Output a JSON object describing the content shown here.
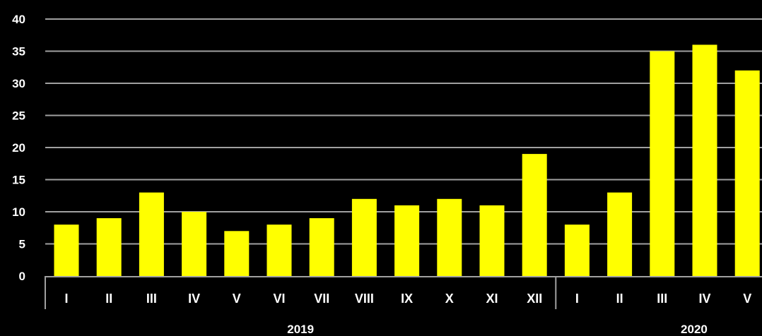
{
  "chart_data": {
    "type": "bar",
    "categories": [
      "I",
      "II",
      "III",
      "IV",
      "V",
      "VI",
      "VII",
      "VIII",
      "IX",
      "X",
      "XI",
      "XII",
      "I",
      "II",
      "III",
      "IV",
      "V"
    ],
    "groups": [
      {
        "label": "2019",
        "count": 12
      },
      {
        "label": "2020",
        "count": 5
      }
    ],
    "series": [
      {
        "values": [
          8,
          9,
          13,
          10,
          7,
          8,
          9,
          12,
          11,
          12,
          11,
          19,
          8,
          13,
          35,
          36,
          32
        ]
      }
    ],
    "ylim": [
      0,
      40
    ],
    "yticks": [
      "0",
      "5",
      "10",
      "15",
      "20",
      "25",
      "30",
      "35",
      "40"
    ],
    "title": "",
    "xlabel": "",
    "ylabel": "",
    "grid": true,
    "colors": {
      "bar": "#ffff00",
      "background": "#000000",
      "grid": "#a0a0a0",
      "text": "#ffffff"
    }
  }
}
